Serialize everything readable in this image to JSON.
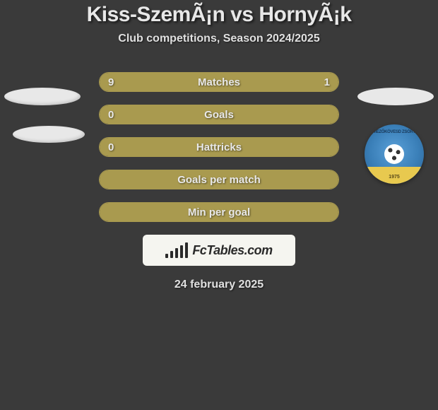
{
  "title": "Kiss-SzemÃ¡n vs HornyÃ¡k",
  "subtitle": "Club competitions, Season 2024/2025",
  "date": "24 february 2025",
  "logo_text": "FcTables.com",
  "badge": {
    "top_text": "MEZŐKÖVESD ZSÓRY",
    "year": "1975"
  },
  "colors": {
    "accent": "#a99a4f",
    "bg": "#3a3a3a",
    "text": "#e8e8e8",
    "badge_blue": "#3a7fb8",
    "badge_yellow": "#e8c94f"
  },
  "stats": [
    {
      "label": "Matches",
      "left_val": "9",
      "right_val": "1",
      "left_pct": 80,
      "right_pct": 20
    },
    {
      "label": "Goals",
      "left_val": "0",
      "right_val": "",
      "left_pct": 100,
      "right_pct": 0
    },
    {
      "label": "Hattricks",
      "left_val": "0",
      "right_val": "",
      "left_pct": 100,
      "right_pct": 0
    },
    {
      "label": "Goals per match",
      "left_val": "",
      "right_val": "",
      "left_pct": 100,
      "right_pct": 0
    },
    {
      "label": "Min per goal",
      "left_val": "",
      "right_val": "",
      "left_pct": 100,
      "right_pct": 0
    }
  ]
}
